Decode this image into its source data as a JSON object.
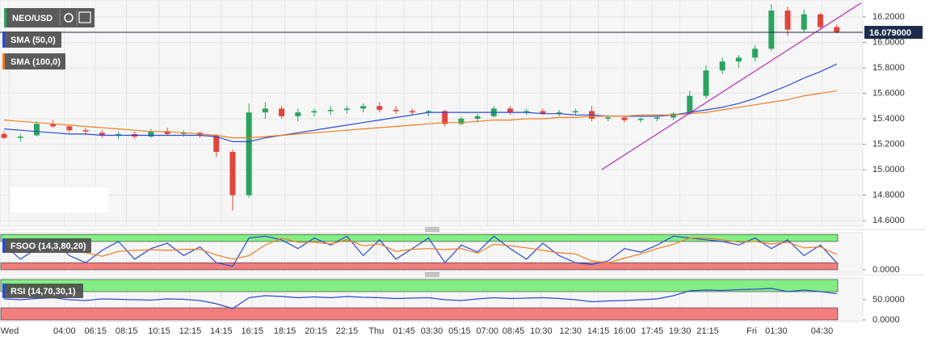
{
  "chart_data": [
    {
      "type": "candlestick",
      "title": "NEO/USD",
      "open": [
        15.28,
        15.25,
        15.27,
        15.36,
        15.34,
        15.31,
        15.29,
        15.27,
        15.28,
        15.26,
        15.3,
        15.28,
        15.29,
        15.27,
        15.14,
        14.8,
        15.45,
        15.48,
        15.42,
        15.45,
        15.46,
        15.47,
        15.48,
        15.5,
        15.47,
        15.46,
        15.45,
        15.46,
        15.36,
        15.4,
        15.42,
        15.48,
        15.45,
        15.46,
        15.44,
        15.45,
        15.46,
        15.4,
        15.41,
        15.39,
        15.4,
        15.41,
        15.44,
        15.58,
        15.78,
        15.85,
        15.88,
        15.95,
        16.25,
        16.1,
        16.22,
        16.12
      ],
      "high": [
        15.3,
        15.28,
        15.38,
        15.39,
        15.35,
        15.33,
        15.31,
        15.3,
        15.3,
        15.32,
        15.33,
        15.31,
        15.3,
        15.28,
        15.16,
        15.52,
        15.53,
        15.5,
        15.48,
        15.48,
        15.5,
        15.5,
        15.52,
        15.53,
        15.5,
        15.48,
        15.47,
        15.47,
        15.42,
        15.44,
        15.5,
        15.5,
        15.48,
        15.48,
        15.47,
        15.48,
        15.5,
        15.43,
        15.42,
        15.41,
        15.42,
        15.45,
        15.62,
        15.82,
        15.88,
        15.9,
        15.98,
        16.3,
        16.28,
        16.26,
        16.23,
        16.14
      ],
      "low": [
        15.24,
        15.22,
        15.26,
        15.33,
        15.29,
        15.27,
        15.25,
        15.24,
        15.24,
        15.25,
        15.27,
        15.26,
        15.25,
        15.1,
        14.68,
        14.78,
        15.4,
        15.4,
        15.38,
        15.42,
        15.43,
        15.44,
        15.45,
        15.45,
        15.44,
        15.43,
        15.42,
        15.34,
        15.35,
        15.37,
        15.41,
        15.43,
        15.43,
        15.43,
        15.42,
        15.43,
        15.38,
        15.38,
        15.37,
        15.37,
        15.38,
        15.39,
        15.43,
        15.56,
        15.75,
        15.8,
        15.85,
        15.93,
        16.05,
        16.08,
        16.1,
        16.07
      ],
      "close": [
        15.25,
        15.26,
        15.36,
        15.34,
        15.31,
        15.3,
        15.27,
        15.28,
        15.26,
        15.3,
        15.28,
        15.29,
        15.27,
        15.14,
        14.8,
        15.45,
        15.48,
        15.42,
        15.45,
        15.46,
        15.47,
        15.48,
        15.5,
        15.47,
        15.46,
        15.45,
        15.46,
        15.36,
        15.4,
        15.42,
        15.48,
        15.45,
        15.46,
        15.44,
        15.45,
        15.46,
        15.4,
        15.41,
        15.39,
        15.4,
        15.41,
        15.44,
        15.58,
        15.78,
        15.85,
        15.88,
        15.95,
        16.25,
        16.1,
        16.22,
        16.12,
        16.08
      ],
      "up_color": "#2ba35f",
      "down_color": "#e0453c",
      "series": [
        {
          "name": "SMA (50,0)",
          "color": "#2a4bd7",
          "values": [
            15.32,
            15.31,
            15.3,
            15.29,
            15.28,
            15.28,
            15.27,
            15.27,
            15.27,
            15.27,
            15.27,
            15.27,
            15.27,
            15.26,
            15.22,
            15.22,
            15.25,
            15.27,
            15.29,
            15.31,
            15.33,
            15.35,
            15.37,
            15.39,
            15.41,
            15.43,
            15.45,
            15.45,
            15.45,
            15.45,
            15.45,
            15.45,
            15.45,
            15.44,
            15.44,
            15.43,
            15.43,
            15.42,
            15.42,
            15.42,
            15.42,
            15.43,
            15.45,
            15.47,
            15.49,
            15.52,
            15.56,
            15.61,
            15.66,
            15.72,
            15.77,
            15.83
          ]
        },
        {
          "name": "SMA (100,0)",
          "color": "#ef7d22",
          "values": [
            15.39,
            15.38,
            15.37,
            15.36,
            15.35,
            15.34,
            15.33,
            15.32,
            15.31,
            15.3,
            15.3,
            15.29,
            15.28,
            15.27,
            15.25,
            15.25,
            15.26,
            15.27,
            15.28,
            15.29,
            15.3,
            15.31,
            15.32,
            15.33,
            15.34,
            15.35,
            15.36,
            15.37,
            15.37,
            15.38,
            15.39,
            15.39,
            15.4,
            15.4,
            15.41,
            15.41,
            15.42,
            15.42,
            15.42,
            15.43,
            15.43,
            15.43,
            15.44,
            15.45,
            15.47,
            15.49,
            15.51,
            15.53,
            15.55,
            15.58,
            15.6,
            15.62
          ]
        }
      ],
      "trendline": {
        "x": [
          36.6,
          52.5
        ],
        "y": [
          15.0,
          16.31
        ],
        "color": "#b52ab5"
      },
      "last_price": {
        "value": 16.079,
        "label": "16.079000",
        "color": "#1e2b4a"
      },
      "xlim": [
        -0.25,
        52.6
      ],
      "xticks": [
        {
          "value": 0.3,
          "label": "Wed"
        },
        {
          "value": 3.7,
          "label": "04:00"
        },
        {
          "value": 5.6,
          "label": "06:15"
        },
        {
          "value": 7.5,
          "label": "08:15"
        },
        {
          "value": 9.5,
          "label": "10:15"
        },
        {
          "value": 11.4,
          "label": "12:15"
        },
        {
          "value": 13.3,
          "label": "14:15"
        },
        {
          "value": 15.2,
          "label": "16:15"
        },
        {
          "value": 17.2,
          "label": "18:15"
        },
        {
          "value": 19.1,
          "label": "20:15"
        },
        {
          "value": 21.0,
          "label": "22:15"
        },
        {
          "value": 22.8,
          "label": "Thu"
        },
        {
          "value": 24.5,
          "label": "01:45"
        },
        {
          "value": 26.2,
          "label": "03:30"
        },
        {
          "value": 27.9,
          "label": "05:15"
        },
        {
          "value": 29.6,
          "label": "07:00"
        },
        {
          "value": 31.2,
          "label": "08:45"
        },
        {
          "value": 32.9,
          "label": "10:30"
        },
        {
          "value": 34.7,
          "label": "12:30"
        },
        {
          "value": 36.4,
          "label": "14:15"
        },
        {
          "value": 38.0,
          "label": "16:00"
        },
        {
          "value": 39.7,
          "label": "17:45"
        },
        {
          "value": 41.4,
          "label": "19:30"
        },
        {
          "value": 43.1,
          "label": "21:15"
        },
        {
          "value": 45.8,
          "label": "Fri"
        },
        {
          "value": 47.3,
          "label": "01:30"
        },
        {
          "value": 50.1,
          "label": "04:30"
        }
      ],
      "ylim": [
        14.556,
        16.333
      ],
      "yticks": [
        {
          "value": 14.6,
          "label": "14.6000"
        },
        {
          "value": 14.8,
          "label": "14.8000"
        },
        {
          "value": 15.0,
          "label": "15.0000"
        },
        {
          "value": 15.2,
          "label": "15.2000"
        },
        {
          "value": 15.4,
          "label": "15.4000"
        },
        {
          "value": 15.6,
          "label": "15.6000"
        },
        {
          "value": 15.8,
          "label": "15.8000"
        },
        {
          "value": 16.0,
          "label": "16.0000"
        },
        {
          "value": 16.2,
          "label": "16.2000"
        }
      ],
      "grid": true
    },
    {
      "type": "line",
      "title": "FSOO (14,3,80,20)",
      "series": [
        {
          "color": "#2a4bd7",
          "values": [
            70,
            30,
            60,
            85,
            40,
            20,
            55,
            80,
            30,
            60,
            75,
            40,
            65,
            20,
            10,
            90,
            95,
            85,
            60,
            90,
            70,
            95,
            40,
            85,
            30,
            60,
            90,
            20,
            70,
            50,
            95,
            60,
            30,
            75,
            40,
            20,
            15,
            25,
            60,
            50,
            70,
            95,
            90,
            85,
            80,
            70,
            90,
            60,
            85,
            40,
            70,
            20
          ]
        },
        {
          "color": "#ef7d22",
          "values": [
            55,
            50,
            52,
            60,
            62,
            48,
            38,
            52,
            55,
            57,
            55,
            58,
            58,
            42,
            30,
            40,
            70,
            90,
            78,
            78,
            73,
            85,
            68,
            73,
            52,
            58,
            60,
            57,
            60,
            47,
            72,
            68,
            62,
            55,
            48,
            45,
            25,
            20,
            33,
            45,
            60,
            72,
            90,
            90,
            85,
            78,
            80,
            73,
            78,
            62,
            65,
            43
          ]
        }
      ],
      "bands": [
        {
          "from": 80,
          "to": 100,
          "color": "#84ee84"
        },
        {
          "from": 0,
          "to": 20,
          "color": "#f27d7d"
        }
      ],
      "ylim": [
        -7,
        105
      ],
      "yticks": [
        {
          "value": 0,
          "label": "0.0000"
        }
      ]
    },
    {
      "type": "line",
      "title": "RSI (14,70,30,1)",
      "series": [
        {
          "color": "#2a4bd7",
          "values": [
            52,
            50,
            53,
            55,
            50,
            48,
            52,
            51,
            50,
            49,
            52,
            51,
            48,
            40,
            28,
            55,
            60,
            58,
            55,
            57,
            55,
            58,
            56,
            55,
            53,
            54,
            55,
            50,
            48,
            52,
            55,
            53,
            54,
            55,
            53,
            50,
            45,
            47,
            48,
            50,
            52,
            60,
            72,
            74,
            73,
            75,
            76,
            78,
            70,
            74,
            70,
            65
          ]
        }
      ],
      "bands": [
        {
          "from": 70,
          "to": 100,
          "color": "#84ee84"
        },
        {
          "from": 0,
          "to": 30,
          "color": "#f27d7d"
        }
      ],
      "ylim": [
        -4,
        104
      ],
      "yticks": [
        {
          "value": 0,
          "label": "0.0000"
        },
        {
          "value": 50,
          "label": "50.0000"
        }
      ]
    }
  ]
}
